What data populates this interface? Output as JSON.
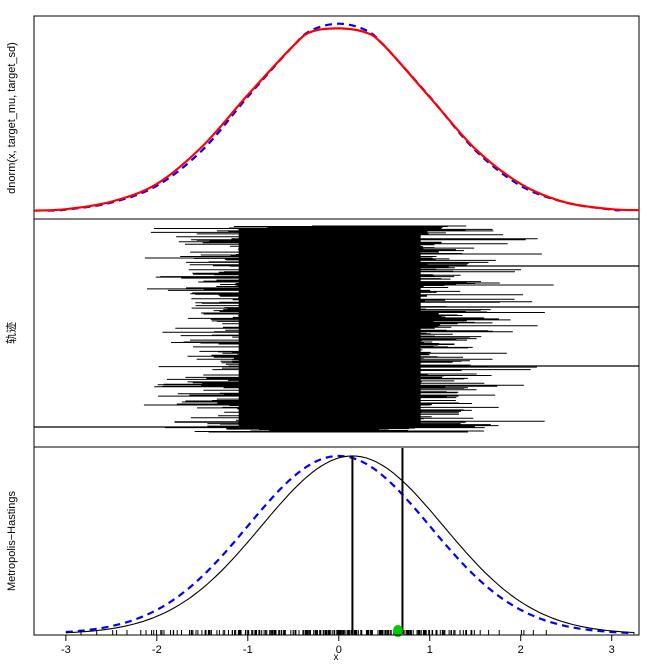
{
  "chart_data": [
    {
      "type": "line",
      "panel": "density",
      "ylabel": "dnorm(x, target_mu, target_sd)",
      "series": [
        {
          "style": "solid",
          "color": "#ff0000",
          "x": [
            -3.35,
            -3,
            -2.5,
            -2,
            -1.5,
            -1,
            -0.5,
            -0.3,
            0,
            0.3,
            0.5,
            1,
            1.5,
            2,
            2.5,
            3,
            3.3
          ],
          "y": [
            0.003,
            0.006,
            0.022,
            0.06,
            0.14,
            0.25,
            0.355,
            0.385,
            0.392,
            0.383,
            0.355,
            0.245,
            0.135,
            0.06,
            0.02,
            0.006,
            0.004
          ]
        },
        {
          "style": "dashed",
          "color": "#0000ff",
          "x": [
            -3.2,
            -3,
            -2.5,
            -2,
            -1.5,
            -1,
            -0.5,
            -0.3,
            0,
            0.3,
            0.5,
            1,
            1.5,
            2,
            2.5,
            3,
            3.1
          ],
          "y": [
            0.003,
            0.005,
            0.02,
            0.056,
            0.132,
            0.246,
            0.355,
            0.388,
            0.402,
            0.388,
            0.355,
            0.246,
            0.132,
            0.056,
            0.02,
            0.005,
            0.004
          ]
        }
      ],
      "xlim": [
        -3.35,
        3.3
      ],
      "ylim": [
        0,
        0.41
      ]
    },
    {
      "type": "line",
      "panel": "trace",
      "ylabel": "轨迹",
      "description_free": true,
      "color": "#000000",
      "xlim": [
        -3.35,
        3.3
      ],
      "bulk_range": [
        -1.1,
        0.9
      ],
      "sample_count": 1000
    },
    {
      "type": "line",
      "panel": "proposal",
      "xlabel": "x",
      "ylabel": "Metropolis−Hastings",
      "x_ticks": [
        -3,
        -2,
        -1,
        0,
        1,
        2,
        3
      ],
      "series": [
        {
          "style": "solid",
          "color": "#000000",
          "mean": 0.15,
          "sd": 1.0
        },
        {
          "style": "dashed",
          "color": "#0000ff",
          "mean": 0.0,
          "sd": 1.0
        }
      ],
      "vlines": [
        0.15,
        0.7
      ],
      "markers": [
        {
          "x": 0.65,
          "color": "#00cc00"
        }
      ],
      "xlim": [
        -3.35,
        3.3
      ],
      "ylim": [
        0,
        0.41
      ]
    }
  ]
}
